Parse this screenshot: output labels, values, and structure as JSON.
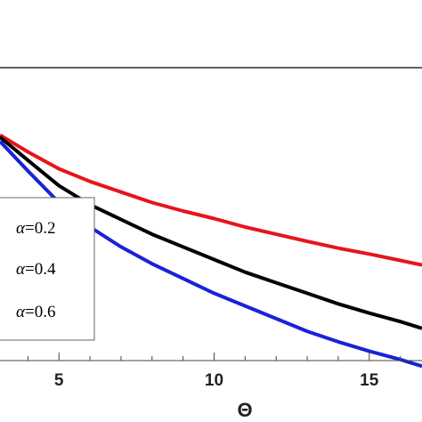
{
  "chart_data": {
    "type": "line",
    "xlabel": "Θ",
    "ylabel": "",
    "title": "",
    "x_ticks": [
      "5",
      "10",
      "15"
    ],
    "x_tick_values": [
      5,
      10,
      15
    ],
    "xlim": [
      3.1,
      16.7
    ],
    "ylim": [
      0,
      1
    ],
    "grid": false,
    "legend_position": "left",
    "legend_prefix": "α",
    "series": [
      {
        "name": "=0.2",
        "color": "#e8141c",
        "x": [
          3.1,
          4,
          5,
          6,
          7,
          8,
          9,
          10,
          11,
          12,
          13,
          14,
          15,
          16,
          16.7
        ],
        "y": [
          0.68,
          0.64,
          0.6,
          0.57,
          0.545,
          0.52,
          0.5,
          0.482,
          0.462,
          0.445,
          0.428,
          0.412,
          0.398,
          0.383,
          0.372
        ]
      },
      {
        "name": "=0.4",
        "color": "#000000",
        "x": [
          3.1,
          4,
          5,
          6,
          7,
          8,
          9,
          10,
          11,
          12,
          13,
          14,
          15,
          16,
          16.7
        ],
        "y": [
          0.675,
          0.62,
          0.56,
          0.515,
          0.48,
          0.445,
          0.415,
          0.385,
          0.355,
          0.33,
          0.305,
          0.28,
          0.258,
          0.238,
          0.222
        ]
      },
      {
        "name": "=0.6",
        "color": "#1a22d6",
        "x": [
          3.1,
          4,
          5,
          6,
          7,
          8,
          9,
          10,
          11,
          12,
          13,
          14,
          15,
          16,
          16.7
        ],
        "y": [
          0.665,
          0.595,
          0.52,
          0.462,
          0.415,
          0.375,
          0.34,
          0.305,
          0.275,
          0.245,
          0.215,
          0.19,
          0.168,
          0.148,
          0.132
        ]
      }
    ]
  }
}
